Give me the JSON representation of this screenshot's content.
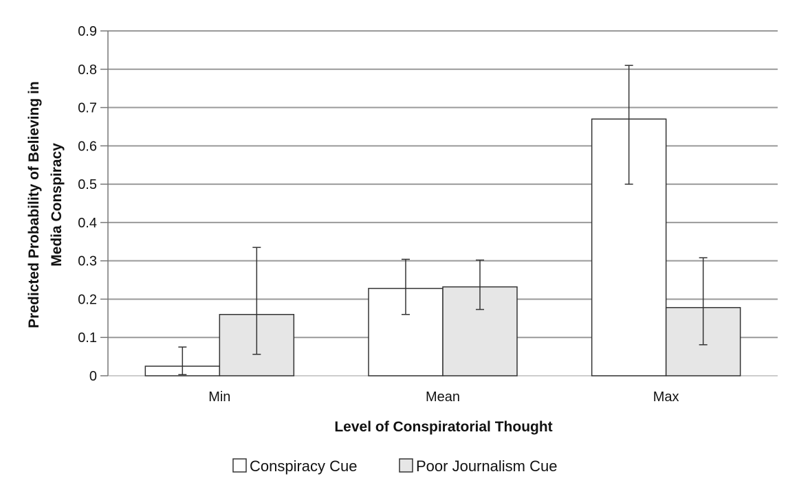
{
  "chart_data": {
    "type": "bar",
    "title": "",
    "xlabel": "Level of Conspiratorial Thought",
    "ylabel_lines": [
      "Predicted Probability of Believing in",
      "Media Conspiracy"
    ],
    "categories": [
      "Min",
      "Mean",
      "Max"
    ],
    "ylim": [
      0,
      0.9
    ],
    "yticks": [
      0,
      0.1,
      0.2,
      0.3,
      0.4,
      0.5,
      0.6,
      0.7,
      0.8,
      0.9
    ],
    "ytick_labels": [
      "0",
      "0.1",
      "0.2",
      "0.3",
      "0.4",
      "0.5",
      "0.6",
      "0.7",
      "0.8",
      "0.9"
    ],
    "grid": true,
    "legend_position": "bottom",
    "series": [
      {
        "name": "Conspiracy Cue",
        "color": "#ffffff",
        "values": [
          0.025,
          0.228,
          0.67
        ],
        "error_low": [
          0.003,
          0.16,
          0.5
        ],
        "error_high": [
          0.075,
          0.304,
          0.81
        ]
      },
      {
        "name": "Poor Journalism Cue",
        "color": "#e6e6e6",
        "values": [
          0.16,
          0.232,
          0.178
        ],
        "error_low": [
          0.056,
          0.173,
          0.081
        ],
        "error_high": [
          0.335,
          0.302,
          0.308
        ]
      }
    ]
  }
}
